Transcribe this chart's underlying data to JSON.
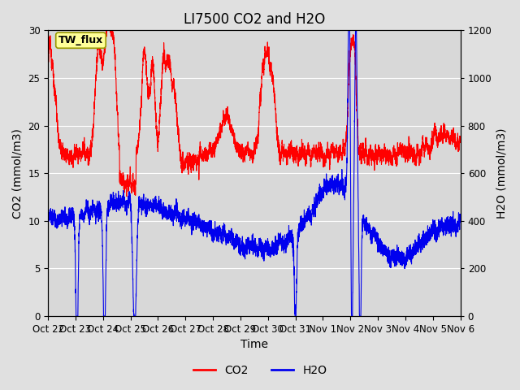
{
  "title": "LI7500 CO2 and H2O",
  "xlabel": "Time",
  "ylabel_left": "CO2 (mmol/m3)",
  "ylabel_right": "H2O (mmol/m3)",
  "ylim_left": [
    0,
    30
  ],
  "ylim_right": [
    0,
    1200
  ],
  "yticks_left": [
    0,
    5,
    10,
    15,
    20,
    25,
    30
  ],
  "yticks_right": [
    0,
    200,
    400,
    600,
    800,
    1000,
    1200
  ],
  "xtick_labels": [
    "Oct 22",
    "Oct 23",
    "Oct 24",
    "Oct 25",
    "Oct 26",
    "Oct 27",
    "Oct 28",
    "Oct 29",
    "Oct 30",
    "Oct 31",
    "Nov 1",
    "Nov 2",
    "Nov 3",
    "Nov 4",
    "Nov 5",
    "Nov 6"
  ],
  "co2_color": "#FF0000",
  "h2o_color": "#0000EE",
  "bg_color": "#E0E0E0",
  "plot_bg_color": "#D8D8D8",
  "legend_label_co2": "CO2",
  "legend_label_h2o": "H2O",
  "annotation_text": "TW_flux",
  "annotation_bg": "#FFFF99",
  "annotation_border": "#999900",
  "title_fontsize": 12,
  "axis_label_fontsize": 10,
  "tick_fontsize": 8.5,
  "legend_fontsize": 10,
  "n_points": 4608
}
